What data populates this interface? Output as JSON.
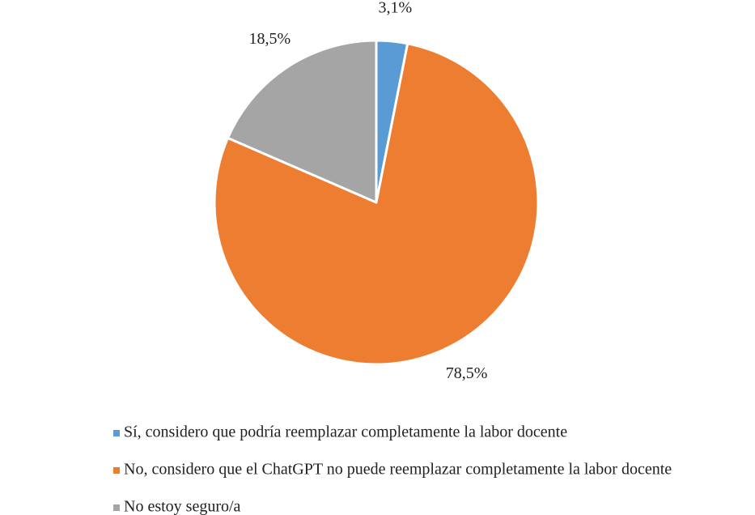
{
  "chart_data": {
    "type": "pie",
    "categories": [
      "Sí, considero que podría reemplazar completamente la labor docente",
      "No, considero que el ChatGPT no puede reemplazar completamente la labor docente",
      "No estoy seguro/a"
    ],
    "values": [
      3.1,
      78.5,
      18.5
    ],
    "value_labels": [
      "3,1%",
      "78,5%",
      "18,5%"
    ],
    "colors": [
      "#5b9bd5",
      "#ed7d31",
      "#a5a5a5"
    ],
    "legend": "bottom"
  }
}
